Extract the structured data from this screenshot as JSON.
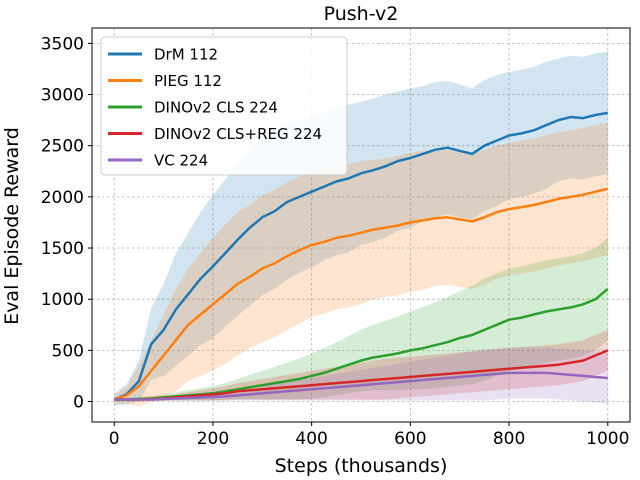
{
  "chart_data": {
    "type": "line",
    "title": "Push-v2",
    "xlabel": "Steps (thousands)",
    "ylabel": "Eval Episode Reward",
    "xlim": [
      -45,
      1045
    ],
    "ylim": [
      -200,
      3650
    ],
    "xticks": [
      0,
      200,
      400,
      600,
      800,
      1000
    ],
    "yticks": [
      0,
      500,
      1000,
      1500,
      2000,
      2500,
      3000,
      3500
    ],
    "grid": true,
    "legend_position": "top-left",
    "series": [
      {
        "name": "DrM 112",
        "color": "#1f77b4",
        "x": [
          0,
          25,
          50,
          75,
          100,
          125,
          150,
          175,
          200,
          225,
          250,
          275,
          300,
          325,
          350,
          375,
          400,
          425,
          450,
          475,
          500,
          525,
          550,
          575,
          600,
          625,
          650,
          675,
          700,
          725,
          750,
          775,
          800,
          825,
          850,
          875,
          900,
          925,
          950,
          975,
          1000
        ],
        "y": [
          20,
          70,
          200,
          560,
          700,
          900,
          1050,
          1200,
          1320,
          1450,
          1580,
          1700,
          1800,
          1860,
          1950,
          2000,
          2050,
          2100,
          2150,
          2180,
          2230,
          2260,
          2300,
          2350,
          2380,
          2420,
          2460,
          2480,
          2450,
          2420,
          2500,
          2550,
          2600,
          2620,
          2650,
          2700,
          2750,
          2780,
          2770,
          2800,
          2820
        ],
        "band": [
          60,
          100,
          200,
          350,
          450,
          550,
          600,
          650,
          700,
          720,
          740,
          760,
          760,
          760,
          760,
          740,
          740,
          720,
          720,
          720,
          700,
          700,
          700,
          680,
          680,
          660,
          660,
          650,
          650,
          640,
          640,
          640,
          620,
          620,
          620,
          620,
          600,
          600,
          600,
          600,
          600
        ]
      },
      {
        "name": "PIEG 112",
        "color": "#ff7f0e",
        "x": [
          0,
          25,
          50,
          75,
          100,
          125,
          150,
          175,
          200,
          225,
          250,
          275,
          300,
          325,
          350,
          375,
          400,
          425,
          450,
          475,
          500,
          525,
          550,
          575,
          600,
          625,
          650,
          675,
          700,
          725,
          750,
          775,
          800,
          825,
          850,
          875,
          900,
          925,
          950,
          975,
          1000
        ],
        "y": [
          20,
          60,
          150,
          300,
          450,
          600,
          750,
          850,
          950,
          1050,
          1150,
          1220,
          1300,
          1350,
          1420,
          1480,
          1530,
          1560,
          1600,
          1620,
          1650,
          1680,
          1700,
          1720,
          1750,
          1770,
          1790,
          1800,
          1780,
          1760,
          1800,
          1850,
          1880,
          1900,
          1920,
          1950,
          1980,
          2000,
          2020,
          2050,
          2080
        ],
        "band": [
          40,
          80,
          200,
          300,
          400,
          500,
          550,
          600,
          650,
          680,
          700,
          700,
          720,
          720,
          720,
          720,
          700,
          700,
          700,
          700,
          700,
          680,
          680,
          680,
          680,
          680,
          660,
          660,
          660,
          660,
          660,
          650,
          650,
          650,
          650,
          650,
          650,
          650,
          650,
          650,
          650
        ]
      },
      {
        "name": "DINOv2 CLS 224",
        "color": "#2ca02c",
        "x": [
          0,
          25,
          50,
          75,
          100,
          125,
          150,
          175,
          200,
          225,
          250,
          275,
          300,
          325,
          350,
          375,
          400,
          425,
          450,
          475,
          500,
          525,
          550,
          575,
          600,
          625,
          650,
          675,
          700,
          725,
          750,
          775,
          800,
          825,
          850,
          875,
          900,
          925,
          950,
          975,
          1000
        ],
        "y": [
          20,
          20,
          25,
          30,
          40,
          50,
          60,
          70,
          80,
          100,
          120,
          140,
          160,
          180,
          200,
          220,
          250,
          280,
          320,
          360,
          400,
          430,
          450,
          470,
          500,
          520,
          550,
          580,
          620,
          650,
          700,
          750,
          800,
          820,
          850,
          880,
          900,
          920,
          950,
          1000,
          1100
        ],
        "band": [
          10,
          15,
          20,
          25,
          30,
          40,
          50,
          60,
          70,
          80,
          100,
          120,
          140,
          160,
          180,
          200,
          220,
          240,
          260,
          280,
          300,
          320,
          340,
          360,
          380,
          400,
          420,
          440,
          460,
          480,
          500,
          500,
          500,
          500,
          500,
          500,
          500,
          500,
          500,
          500,
          500
        ]
      },
      {
        "name": "DINOv2 CLS+REG 224",
        "color": "#d62728",
        "x": [
          0,
          25,
          50,
          75,
          100,
          125,
          150,
          175,
          200,
          225,
          250,
          275,
          300,
          325,
          350,
          375,
          400,
          425,
          450,
          475,
          500,
          525,
          550,
          575,
          600,
          625,
          650,
          675,
          700,
          725,
          750,
          775,
          800,
          825,
          850,
          875,
          900,
          925,
          950,
          975,
          1000
        ],
        "y": [
          20,
          20,
          20,
          25,
          30,
          40,
          50,
          60,
          70,
          80,
          100,
          110,
          120,
          130,
          140,
          150,
          160,
          170,
          180,
          190,
          200,
          210,
          220,
          230,
          240,
          250,
          260,
          270,
          280,
          290,
          300,
          310,
          320,
          330,
          340,
          350,
          360,
          380,
          400,
          450,
          500
        ],
        "band": [
          10,
          10,
          15,
          20,
          25,
          30,
          40,
          50,
          60,
          70,
          80,
          90,
          100,
          110,
          120,
          130,
          140,
          150,
          160,
          170,
          180,
          190,
          200,
          200,
          200,
          200,
          200,
          200,
          200,
          200,
          200,
          200,
          200,
          200,
          200,
          200,
          200,
          200,
          200,
          200,
          200
        ]
      },
      {
        "name": "VC 224",
        "color": "#9467bd",
        "x": [
          0,
          25,
          50,
          75,
          100,
          125,
          150,
          175,
          200,
          225,
          250,
          275,
          300,
          325,
          350,
          375,
          400,
          425,
          450,
          475,
          500,
          525,
          550,
          575,
          600,
          625,
          650,
          675,
          700,
          725,
          750,
          775,
          800,
          825,
          850,
          875,
          900,
          925,
          950,
          975,
          1000
        ],
        "y": [
          20,
          20,
          20,
          20,
          25,
          30,
          35,
          40,
          45,
          50,
          60,
          70,
          80,
          90,
          100,
          110,
          120,
          130,
          140,
          150,
          160,
          170,
          180,
          190,
          200,
          210,
          220,
          230,
          240,
          250,
          260,
          270,
          280,
          280,
          280,
          280,
          270,
          260,
          250,
          240,
          230
        ],
        "band": [
          10,
          10,
          10,
          10,
          15,
          20,
          25,
          30,
          35,
          40,
          50,
          60,
          70,
          80,
          90,
          100,
          110,
          120,
          130,
          140,
          150,
          160,
          170,
          180,
          190,
          200,
          210,
          220,
          230,
          240,
          250,
          250,
          250,
          250,
          250,
          250,
          250,
          250,
          250,
          250,
          250
        ]
      }
    ]
  }
}
